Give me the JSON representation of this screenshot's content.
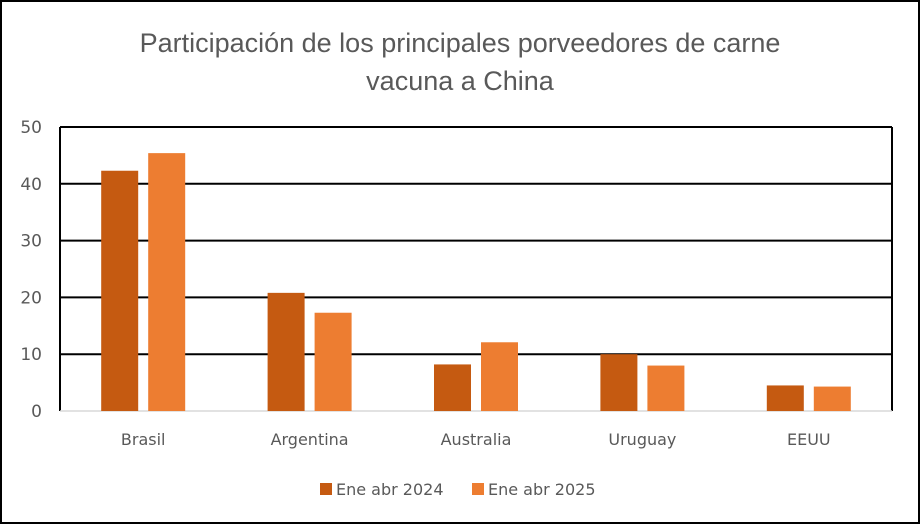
{
  "chart_data": {
    "type": "bar",
    "title": "Participación de los principales porveedores de carne vacuna a China",
    "title_lines": [
      "Participación de los principales porveedores de carne",
      "vacuna a China"
    ],
    "xlabel": "",
    "ylabel": "",
    "ylim": [
      0,
      50
    ],
    "yticks": [
      0,
      10,
      20,
      30,
      40,
      50
    ],
    "grid": true,
    "legend_position": "bottom",
    "categories": [
      "Brasil",
      "Argentina",
      "Australia",
      "Uruguay",
      "EEUU"
    ],
    "series": [
      {
        "name": "Ene abr 2024",
        "color": "#C55A11",
        "values": [
          42.3,
          20.8,
          8.2,
          10.0,
          4.5
        ]
      },
      {
        "name": "Ene abr 2025",
        "color": "#ED7D31",
        "values": [
          45.4,
          17.3,
          12.1,
          8.0,
          4.3
        ]
      }
    ]
  }
}
